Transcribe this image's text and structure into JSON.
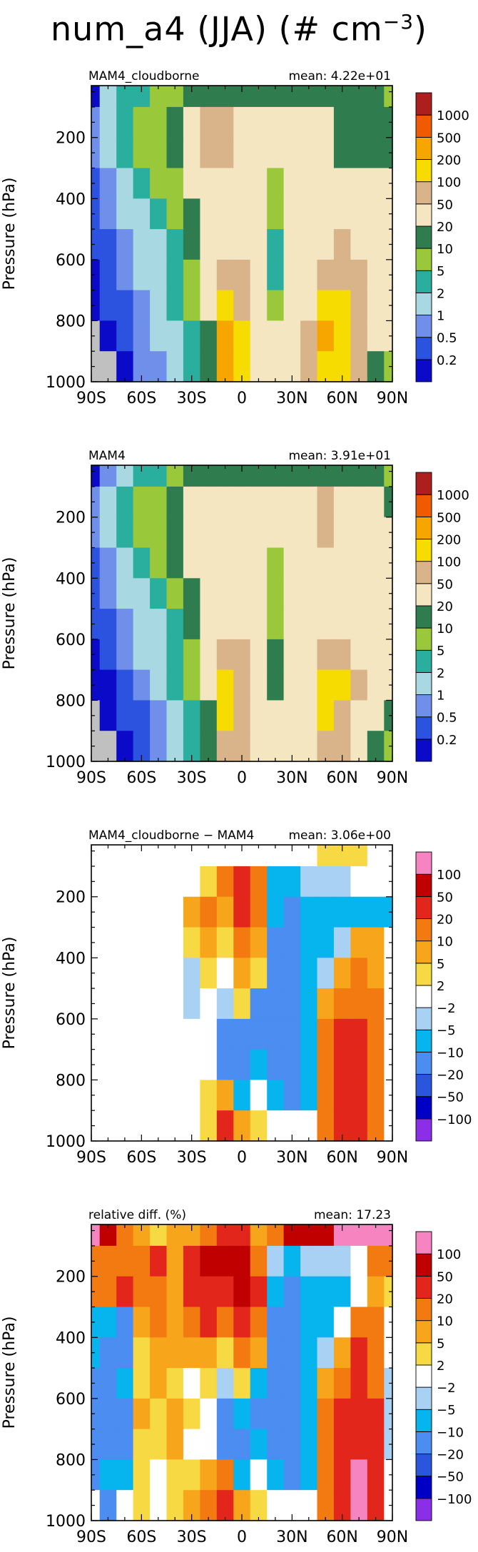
{
  "figure_title": {
    "main": "num_a4 (JJA) (# cm",
    "exponent": "−3",
    "close": ")"
  },
  "colors": {
    "abs_scale": [
      "#0a0ac8",
      "#2c52e0",
      "#6f8fea",
      "#a8d8e2",
      "#2aae9e",
      "#99c93a",
      "#2f7d4f",
      "#f3e6c1",
      "#d9b48a",
      "#f6dc00",
      "#f7a600",
      "#f05a00",
      "#ad1f1f"
    ],
    "diff_scale": [
      "#8b2ee8",
      "#0000c4",
      "#2956dc",
      "#4b8df0",
      "#06b4ee",
      "#a8d1f4",
      "#ffffff",
      "#f7d943",
      "#f7a61b",
      "#f27a10",
      "#e2261b",
      "#c00000",
      "#f584c0"
    ],
    "land_mask": "#c0c0c0"
  },
  "chart_data": [
    {
      "type": "heatmap",
      "panel_label": "MAM4_cloudborne",
      "mean_text": "mean: 4.22e+01",
      "xlabel": "",
      "ylabel": "Pressure (hPa)",
      "x_ticks": [
        "90S",
        "60S",
        "30S",
        "0",
        "30N",
        "60N",
        "90N"
      ],
      "x_tick_values": [
        -90,
        -60,
        -30,
        0,
        30,
        60,
        90
      ],
      "y_ticks": [
        "200",
        "400",
        "600",
        "800",
        "1000"
      ],
      "y_tick_values": [
        200,
        400,
        600,
        800,
        1000
      ],
      "xlim": [
        -90,
        90
      ],
      "ylim": [
        1000,
        30
      ],
      "colorbar_levels": [
        "0.2",
        "0.5",
        "1",
        "2",
        "5",
        "10",
        "20",
        "50",
        "100",
        "200",
        "500",
        "1000"
      ],
      "scale": "abs",
      "lat": [
        -90,
        -80,
        -70,
        -60,
        -50,
        -40,
        -30,
        -20,
        -10,
        0,
        10,
        20,
        30,
        40,
        50,
        60,
        70,
        80,
        90
      ],
      "lev": [
        50,
        150,
        250,
        350,
        450,
        550,
        650,
        750,
        850,
        950
      ],
      "bands": [
        [
          0,
          3,
          4,
          4,
          5,
          5,
          6,
          6,
          6,
          6,
          6,
          6,
          6,
          6,
          6,
          6,
          6,
          6,
          5
        ],
        [
          2,
          3,
          4,
          5,
          5,
          6,
          7,
          8,
          8,
          7,
          7,
          7,
          7,
          7,
          7,
          6,
          6,
          6,
          6
        ],
        [
          2,
          3,
          4,
          5,
          5,
          6,
          7,
          8,
          8,
          7,
          7,
          7,
          7,
          7,
          7,
          6,
          6,
          6,
          6
        ],
        [
          1,
          2,
          3,
          4,
          5,
          5,
          7,
          7,
          7,
          7,
          7,
          5,
          7,
          7,
          7,
          7,
          7,
          7,
          7
        ],
        [
          1,
          2,
          3,
          3,
          4,
          5,
          6,
          7,
          7,
          7,
          7,
          5,
          7,
          7,
          7,
          7,
          7,
          7,
          7
        ],
        [
          1,
          1,
          2,
          3,
          3,
          4,
          6,
          7,
          7,
          7,
          7,
          4,
          7,
          7,
          7,
          8,
          7,
          7,
          7
        ],
        [
          0,
          1,
          2,
          3,
          3,
          4,
          5,
          7,
          8,
          8,
          7,
          4,
          7,
          7,
          8,
          8,
          8,
          7,
          7
        ],
        [
          0,
          1,
          1,
          2,
          3,
          4,
          5,
          7,
          9,
          8,
          7,
          5,
          7,
          7,
          9,
          9,
          8,
          7,
          7
        ],
        [
          -1,
          0,
          1,
          2,
          3,
          3,
          4,
          6,
          10,
          9,
          7,
          7,
          7,
          8,
          10,
          9,
          8,
          7,
          7
        ],
        [
          -1,
          -1,
          0,
          2,
          2,
          3,
          4,
          6,
          10,
          9,
          7,
          7,
          7,
          8,
          9,
          9,
          8,
          6,
          5
        ]
      ]
    },
    {
      "type": "heatmap",
      "panel_label": "MAM4",
      "mean_text": "mean: 3.91e+01",
      "xlabel": "",
      "ylabel": "Pressure (hPa)",
      "x_ticks": [
        "90S",
        "60S",
        "30S",
        "0",
        "30N",
        "60N",
        "90N"
      ],
      "x_tick_values": [
        -90,
        -60,
        -30,
        0,
        30,
        60,
        90
      ],
      "y_ticks": [
        "200",
        "400",
        "600",
        "800",
        "1000"
      ],
      "y_tick_values": [
        200,
        400,
        600,
        800,
        1000
      ],
      "xlim": [
        -90,
        90
      ],
      "ylim": [
        1000,
        30
      ],
      "colorbar_levels": [
        "0.2",
        "0.5",
        "1",
        "2",
        "5",
        "10",
        "20",
        "50",
        "100",
        "200",
        "500",
        "1000"
      ],
      "scale": "abs",
      "lat": [
        -90,
        -80,
        -70,
        -60,
        -50,
        -40,
        -30,
        -20,
        -10,
        0,
        10,
        20,
        30,
        40,
        50,
        60,
        70,
        80,
        90
      ],
      "lev": [
        50,
        150,
        250,
        350,
        450,
        550,
        650,
        750,
        850,
        950
      ],
      "bands": [
        [
          0,
          2,
          3,
          4,
          4,
          5,
          6,
          6,
          6,
          6,
          6,
          6,
          6,
          6,
          6,
          6,
          6,
          6,
          5
        ],
        [
          2,
          3,
          4,
          5,
          5,
          6,
          7,
          7,
          7,
          7,
          7,
          7,
          7,
          7,
          8,
          7,
          7,
          7,
          6
        ],
        [
          2,
          3,
          4,
          5,
          5,
          6,
          7,
          7,
          7,
          7,
          7,
          7,
          7,
          7,
          8,
          7,
          7,
          7,
          7
        ],
        [
          1,
          2,
          3,
          4,
          5,
          6,
          7,
          7,
          7,
          7,
          7,
          5,
          7,
          7,
          7,
          7,
          7,
          7,
          7
        ],
        [
          1,
          2,
          3,
          3,
          4,
          5,
          6,
          7,
          7,
          7,
          7,
          5,
          7,
          7,
          7,
          7,
          7,
          7,
          7
        ],
        [
          1,
          1,
          2,
          3,
          3,
          4,
          6,
          7,
          7,
          7,
          7,
          5,
          7,
          7,
          7,
          7,
          7,
          7,
          7
        ],
        [
          0,
          1,
          2,
          3,
          3,
          4,
          5,
          7,
          8,
          8,
          7,
          6,
          7,
          7,
          8,
          8,
          7,
          7,
          7
        ],
        [
          0,
          0,
          1,
          2,
          3,
          4,
          5,
          7,
          9,
          8,
          7,
          6,
          7,
          7,
          9,
          9,
          8,
          7,
          7
        ],
        [
          -1,
          0,
          1,
          1,
          2,
          3,
          4,
          6,
          9,
          8,
          7,
          7,
          7,
          7,
          9,
          8,
          7,
          7,
          6
        ],
        [
          -1,
          -1,
          0,
          1,
          2,
          3,
          4,
          6,
          8,
          8,
          7,
          7,
          7,
          7,
          8,
          8,
          7,
          6,
          5
        ]
      ]
    },
    {
      "type": "heatmap",
      "panel_label": "MAM4_cloudborne − MAM4",
      "mean_text": "mean: 3.06e+00",
      "xlabel": "",
      "ylabel": "Pressure (hPa)",
      "x_ticks": [
        "90S",
        "60S",
        "30S",
        "0",
        "30N",
        "60N",
        "90N"
      ],
      "x_tick_values": [
        -90,
        -60,
        -30,
        0,
        30,
        60,
        90
      ],
      "y_ticks": [
        "200",
        "400",
        "600",
        "800",
        "1000"
      ],
      "y_tick_values": [
        200,
        400,
        600,
        800,
        1000
      ],
      "xlim": [
        -90,
        90
      ],
      "ylim": [
        1000,
        30
      ],
      "colorbar_levels": [
        "−100",
        "−50",
        "−20",
        "−10",
        "−5",
        "−2",
        "2",
        "5",
        "10",
        "20",
        "50",
        "100"
      ],
      "scale": "diff",
      "lat": [
        -90,
        -80,
        -70,
        -60,
        -50,
        -40,
        -30,
        -20,
        -10,
        0,
        10,
        20,
        30,
        40,
        50,
        60,
        70,
        80,
        90
      ],
      "lev": [
        50,
        150,
        250,
        350,
        450,
        550,
        650,
        750,
        850,
        950
      ],
      "bands": [
        [
          6,
          6,
          6,
          6,
          6,
          6,
          6,
          6,
          6,
          6,
          6,
          6,
          6,
          6,
          7,
          7,
          7,
          6,
          6
        ],
        [
          6,
          6,
          6,
          6,
          6,
          6,
          6,
          7,
          9,
          10,
          9,
          4,
          4,
          5,
          5,
          5,
          6,
          6,
          6
        ],
        [
          6,
          6,
          6,
          6,
          6,
          6,
          8,
          9,
          8,
          10,
          9,
          4,
          3,
          4,
          4,
          4,
          4,
          4,
          4
        ],
        [
          6,
          6,
          6,
          6,
          6,
          6,
          7,
          8,
          7,
          9,
          8,
          3,
          3,
          4,
          4,
          5,
          8,
          8,
          6
        ],
        [
          6,
          6,
          6,
          6,
          6,
          6,
          5,
          7,
          6,
          8,
          7,
          3,
          3,
          4,
          5,
          8,
          9,
          8,
          6
        ],
        [
          6,
          6,
          6,
          6,
          6,
          6,
          5,
          6,
          5,
          7,
          3,
          3,
          3,
          4,
          8,
          9,
          9,
          9,
          6
        ],
        [
          6,
          6,
          6,
          6,
          6,
          6,
          6,
          6,
          3,
          3,
          3,
          3,
          3,
          4,
          9,
          10,
          10,
          9,
          6
        ],
        [
          6,
          6,
          6,
          6,
          6,
          6,
          6,
          6,
          3,
          3,
          4,
          3,
          3,
          4,
          9,
          10,
          10,
          9,
          6
        ],
        [
          6,
          6,
          6,
          6,
          6,
          6,
          6,
          7,
          8,
          4,
          6,
          4,
          3,
          4,
          9,
          10,
          10,
          9,
          6
        ],
        [
          6,
          6,
          6,
          6,
          6,
          6,
          6,
          7,
          10,
          8,
          7,
          6,
          6,
          6,
          9,
          10,
          10,
          9,
          6
        ]
      ]
    },
    {
      "type": "heatmap",
      "panel_label": "relative diff. (%)",
      "mean_text": "mean: 17.23",
      "xlabel": "",
      "ylabel": "Pressure (hPa)",
      "x_ticks": [
        "90S",
        "60S",
        "30S",
        "0",
        "30N",
        "60N",
        "90N"
      ],
      "x_tick_values": [
        -90,
        -60,
        -30,
        0,
        30,
        60,
        90
      ],
      "y_ticks": [
        "200",
        "400",
        "600",
        "800",
        "1000"
      ],
      "y_tick_values": [
        200,
        400,
        600,
        800,
        1000
      ],
      "xlim": [
        -90,
        90
      ],
      "ylim": [
        1000,
        30
      ],
      "colorbar_levels": [
        "−100",
        "−50",
        "−20",
        "−10",
        "−5",
        "−2",
        "2",
        "5",
        "10",
        "20",
        "50",
        "100"
      ],
      "scale": "diff",
      "lat": [
        -90,
        -80,
        -70,
        -60,
        -50,
        -40,
        -30,
        -20,
        -10,
        0,
        10,
        20,
        30,
        40,
        50,
        60,
        70,
        80,
        90
      ],
      "lev": [
        50,
        150,
        250,
        350,
        450,
        550,
        650,
        750,
        850,
        950
      ],
      "bands": [
        [
          12,
          11,
          9,
          8,
          7,
          8,
          8,
          9,
          10,
          10,
          8,
          9,
          11,
          11,
          11,
          12,
          12,
          12,
          12
        ],
        [
          9,
          9,
          9,
          9,
          10,
          8,
          10,
          11,
          11,
          11,
          9,
          5,
          4,
          5,
          5,
          5,
          6,
          9,
          9
        ],
        [
          9,
          9,
          10,
          9,
          9,
          8,
          10,
          10,
          10,
          11,
          10,
          4,
          3,
          4,
          4,
          4,
          6,
          8,
          7
        ],
        [
          4,
          4,
          3,
          8,
          9,
          8,
          9,
          10,
          9,
          10,
          9,
          3,
          3,
          4,
          4,
          6,
          9,
          9,
          6
        ],
        [
          4,
          3,
          3,
          7,
          8,
          8,
          8,
          8,
          7,
          9,
          8,
          3,
          3,
          4,
          5,
          8,
          10,
          9,
          6
        ],
        [
          3,
          3,
          4,
          7,
          8,
          7,
          6,
          7,
          5,
          7,
          4,
          3,
          3,
          4,
          8,
          9,
          10,
          9,
          5
        ],
        [
          3,
          3,
          3,
          8,
          7,
          8,
          7,
          6,
          3,
          4,
          3,
          3,
          3,
          4,
          9,
          10,
          10,
          10,
          5
        ],
        [
          3,
          3,
          3,
          7,
          7,
          8,
          6,
          6,
          3,
          3,
          4,
          3,
          3,
          4,
          9,
          10,
          10,
          10,
          5
        ],
        [
          3,
          4,
          4,
          7,
          6,
          7,
          7,
          8,
          9,
          4,
          6,
          4,
          3,
          4,
          9,
          10,
          12,
          10,
          6
        ],
        [
          6,
          3,
          6,
          7,
          6,
          7,
          8,
          9,
          10,
          8,
          7,
          6,
          6,
          6,
          9,
          10,
          12,
          10,
          6
        ]
      ]
    }
  ]
}
